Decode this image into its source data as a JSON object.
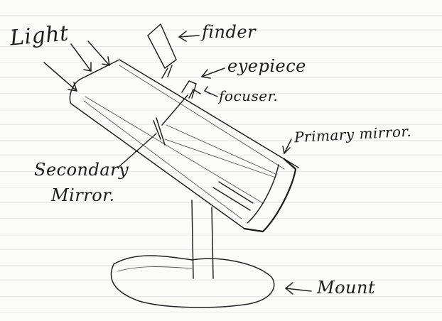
{
  "labels": {
    "light": "Light",
    "finder": "finder",
    "eyepiece": "eyepiece",
    "focuser": "focuser.",
    "primary_mirror": "Primary mirror.",
    "secondary_line1": "Secondary",
    "secondary_line2": "Mirror.",
    "mount": "Mount"
  }
}
